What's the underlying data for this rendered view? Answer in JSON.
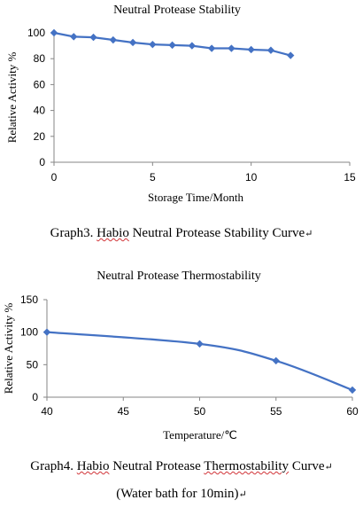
{
  "chart_data": [
    {
      "type": "line",
      "title": "Neutral Protease Stability",
      "xlabel": "Storage Time/Month",
      "ylabel": "Relative Activity %",
      "xlim": [
        0,
        15
      ],
      "ylim": [
        0,
        100
      ],
      "xticks": [
        0,
        5,
        10,
        15
      ],
      "yticks": [
        0,
        20,
        40,
        60,
        80,
        100
      ],
      "grid": false,
      "series": [
        {
          "x": [
            0,
            1,
            2,
            3,
            4,
            5,
            6,
            7,
            8,
            9,
            10,
            11,
            12
          ],
          "y": [
            100,
            97,
            96.5,
            94.5,
            92.5,
            91,
            90.5,
            90,
            88,
            88,
            87,
            86.5,
            82.5
          ],
          "color": "#4472c4",
          "marker": "diamond",
          "smooth": false
        }
      ]
    },
    {
      "type": "line",
      "title": "Neutral Protease Thermostability",
      "xlabel": "Temperature/℃",
      "ylabel": "Relative Activity %",
      "xlim": [
        40,
        60
      ],
      "ylim": [
        0,
        150
      ],
      "xticks": [
        40,
        45,
        50,
        55,
        60
      ],
      "yticks": [
        0,
        50,
        100,
        150
      ],
      "grid": false,
      "series": [
        {
          "x": [
            40,
            50,
            55,
            60
          ],
          "y": [
            100,
            82,
            56,
            11
          ],
          "color": "#4472c4",
          "marker": "diamond",
          "smooth": true
        }
      ]
    }
  ],
  "captions": {
    "graph3": {
      "prefix": "Graph3. ",
      "underlined": "Habio",
      "suffix": " Neutral Protease Stability Curve",
      "mark": "↵"
    },
    "graph4": {
      "prefix": "Graph4. ",
      "underlined_1": "Habio",
      "middle": " Neutral Protease ",
      "underlined_2": "Thermostability",
      "suffix": " Curve",
      "mark": "↵",
      "line2": "(Water bath for 10min)",
      "line2_mark": "↵"
    }
  }
}
